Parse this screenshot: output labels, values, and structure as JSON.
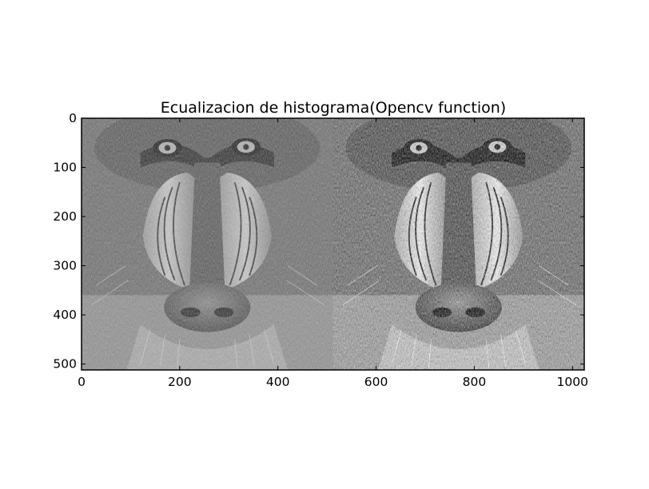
{
  "chart_data": {
    "type": "image",
    "title": "Ecualizacion de histograma(Opencv function)",
    "xlim": [
      0,
      1024
    ],
    "ylim": [
      512,
      0
    ],
    "x_ticks": [
      0,
      200,
      400,
      600,
      800,
      1000
    ],
    "y_ticks": [
      0,
      100,
      200,
      300,
      400,
      500
    ],
    "panels": [
      {
        "x_range": [
          0,
          512
        ],
        "content": "original grayscale mandrill",
        "contrast": 1.0
      },
      {
        "x_range": [
          512,
          1024
        ],
        "content": "histogram-equalized grayscale mandrill",
        "contrast": 1.6
      }
    ],
    "colors": {
      "axes": "#000000",
      "background": "#ffffff"
    }
  }
}
